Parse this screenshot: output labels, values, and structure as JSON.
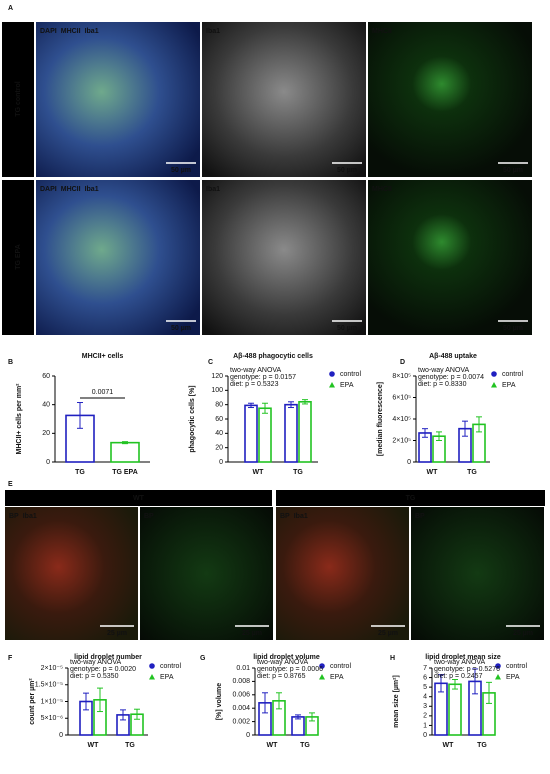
{
  "panel_labels": [
    "A",
    "B",
    "C",
    "D",
    "E",
    "F",
    "G",
    "H"
  ],
  "panel_a": {
    "row_labels": [
      "TG control",
      "TG EPA"
    ],
    "overlays": [
      [
        "DAPI",
        "MHCII",
        "Iba1"
      ],
      [
        "Iba1"
      ],
      [
        "MHCII"
      ]
    ],
    "scale_bar": "50 µm"
  },
  "panel_e": {
    "headers": [
      "WT",
      "TG"
    ],
    "overlays": [
      [
        "BP",
        "Iba1"
      ],
      [
        "BP"
      ]
    ],
    "scale_bar": "25 µm"
  },
  "chart_data": [
    {
      "type": "bar",
      "title": "MHCII+ cells",
      "y_label": "MHCII+ cells per mm²",
      "categories": [
        "TG",
        "TG EPA"
      ],
      "values": [
        32.5,
        13.5
      ],
      "errors": [
        9,
        0.7
      ],
      "colors": [
        "#2020c0",
        "#22c322"
      ],
      "ylim": [
        0,
        60
      ],
      "yticks": [
        0,
        20,
        40,
        60
      ],
      "annotation": "0.0071"
    },
    {
      "type": "grouped-bar",
      "title": "Aβ-488 phagocytic cells",
      "y_label": "phagocytic cells [%]",
      "categories": [
        "WT",
        "TG"
      ],
      "series": [
        {
          "name": "control",
          "color": "#2020c0",
          "marker": "circle",
          "values": [
            79,
            80
          ],
          "errors": [
            3,
            4
          ]
        },
        {
          "name": "EPA",
          "color": "#22c322",
          "marker": "triangle",
          "values": [
            75,
            84
          ],
          "errors": [
            7,
            3
          ]
        }
      ],
      "ylim": [
        0,
        120
      ],
      "yticks": [
        0,
        20,
        40,
        60,
        80,
        100,
        120
      ],
      "annotations": [
        "two-way ANOVA",
        "genotype: p = 0.0157",
        "diet: p = 0.5323"
      ]
    },
    {
      "type": "grouped-bar",
      "title": "Aβ-488 uptake",
      "y_label": "[median fluorescence]",
      "categories": [
        "WT",
        "TG"
      ],
      "series": [
        {
          "name": "control",
          "color": "#2020c0",
          "marker": "circle",
          "values": [
            270000,
            310000
          ],
          "errors": [
            40000,
            70000
          ]
        },
        {
          "name": "EPA",
          "color": "#22c322",
          "marker": "triangle",
          "values": [
            240000,
            350000
          ],
          "errors": [
            40000,
            70000
          ]
        }
      ],
      "ylim": [
        0,
        800000
      ],
      "yticks": [
        0,
        {
          "value": 200000,
          "label": "2×10⁵"
        },
        {
          "value": 400000,
          "label": "4×10⁵"
        },
        {
          "value": 600000,
          "label": "6×10⁵"
        },
        {
          "value": 800000,
          "label": "8×10⁵"
        }
      ],
      "annotations": [
        "two-way ANOVA",
        "genotype: p = 0.0074",
        "diet: p = 0.8330"
      ]
    },
    {
      "type": "grouped-bar",
      "title": "lipid droplet number",
      "y_label": "count per µm²",
      "categories": [
        "WT",
        "TG"
      ],
      "series": [
        {
          "name": "control",
          "color": "#2020c0",
          "marker": "circle",
          "values": [
            1e-05,
            6e-06
          ],
          "errors": [
            2.5e-06,
            1.5e-06
          ]
        },
        {
          "name": "EPA",
          "color": "#22c322",
          "marker": "triangle",
          "values": [
            1.05e-05,
            6.2e-06
          ],
          "errors": [
            3.5e-06,
            1.5e-06
          ]
        }
      ],
      "ylim": [
        0,
        2e-05
      ],
      "yticks": [
        0,
        {
          "value": 5e-06,
          "label": "5×10⁻⁶"
        },
        {
          "value": 1e-05,
          "label": "1×10⁻⁵"
        },
        {
          "value": 1.5e-05,
          "label": "1.5×10⁻⁵"
        },
        {
          "value": 2e-05,
          "label": "2×10⁻⁵"
        }
      ],
      "annotations": [
        "two-way ANOVA",
        "genotype: p = 0.0020",
        "diet: p = 0.5350"
      ]
    },
    {
      "type": "grouped-bar",
      "title": "lipid droplet volume",
      "y_label": "[%] volume",
      "categories": [
        "WT",
        "TG"
      ],
      "series": [
        {
          "name": "control",
          "color": "#2020c0",
          "marker": "circle",
          "values": [
            0.0048,
            0.0027
          ],
          "errors": [
            0.0015,
            0.0003
          ]
        },
        {
          "name": "EPA",
          "color": "#22c322",
          "marker": "triangle",
          "values": [
            0.0051,
            0.0027
          ],
          "errors": [
            0.0012,
            0.0006
          ]
        }
      ],
      "ylim": [
        0,
        0.01
      ],
      "yticks": [
        0,
        0.002,
        0.004,
        0.006,
        0.008,
        0.01
      ],
      "annotations": [
        "two-way ANOVA",
        "genotype: p = 0.0006",
        "diet: p = 0.8765"
      ]
    },
    {
      "type": "grouped-bar",
      "title": "lipid droplet mean size",
      "y_label": "mean size [µm²]",
      "categories": [
        "WT",
        "TG"
      ],
      "series": [
        {
          "name": "control",
          "color": "#2020c0",
          "marker": "circle",
          "values": [
            5.4,
            5.6
          ],
          "errors": [
            0.9,
            1.3
          ]
        },
        {
          "name": "EPA",
          "color": "#22c322",
          "marker": "triangle",
          "values": [
            5.3,
            4.4
          ],
          "errors": [
            0.5,
            1.1
          ]
        }
      ],
      "ylim": [
        0,
        7
      ],
      "yticks": [
        0,
        1,
        2,
        3,
        4,
        5,
        6,
        7
      ],
      "annotations": [
        "two-way ANOVA",
        "genotype: p = 0.5276",
        "diet: p = 0.2457"
      ]
    }
  ]
}
